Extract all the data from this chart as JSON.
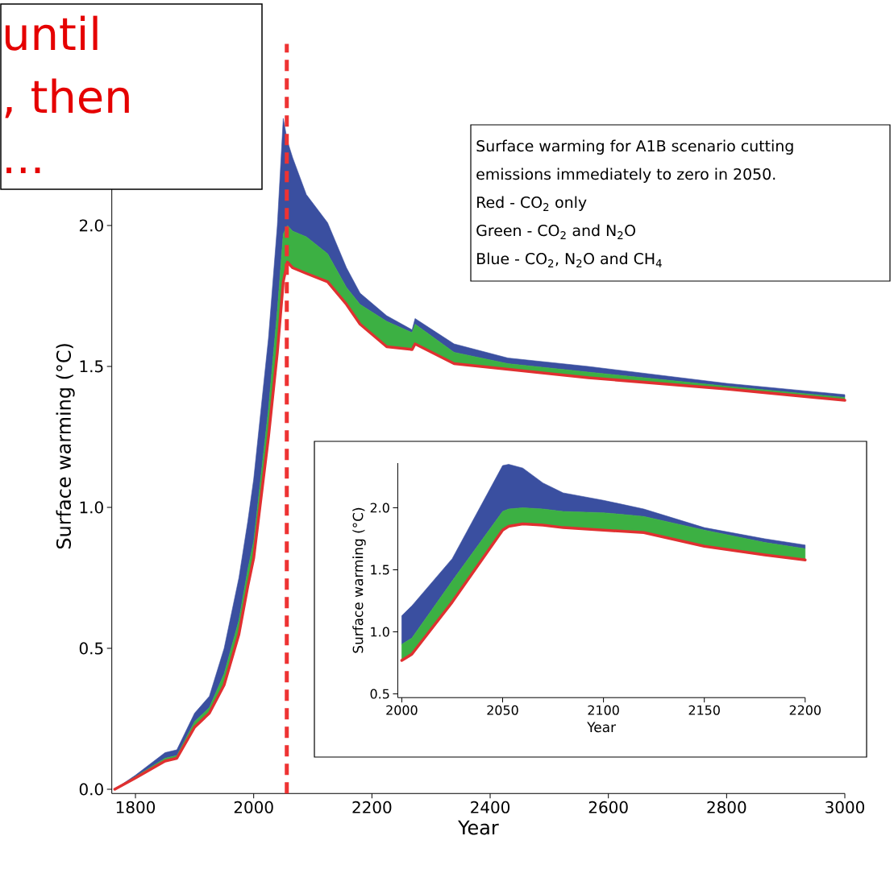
{
  "chart_data": [
    {
      "type": "area",
      "xlabel": "Year",
      "ylabel": "Surface warming (°C)",
      "x": [
        1765,
        1800,
        1850,
        1870,
        1900,
        1925,
        1950,
        1975,
        1990,
        2000,
        2025,
        2040,
        2050,
        2057,
        2066,
        2089,
        2125,
        2157,
        2180,
        2225,
        2268,
        2273,
        2339,
        2430,
        2566,
        2800,
        3000
      ],
      "series": [
        {
          "color": "#3a4fa0",
          "values": [
            0,
            0.05,
            0.13,
            0.14,
            0.27,
            0.33,
            0.5,
            0.75,
            0.95,
            1.1,
            1.6,
            2.0,
            2.38,
            2.3,
            2.24,
            2.11,
            2.01,
            1.85,
            1.76,
            1.68,
            1.63,
            1.67,
            1.58,
            1.53,
            1.5,
            1.44,
            1.4
          ]
        },
        {
          "color": "#3cb043",
          "values": [
            0,
            0.045,
            0.11,
            0.12,
            0.24,
            0.29,
            0.41,
            0.6,
            0.78,
            0.88,
            1.35,
            1.7,
            1.97,
            2.0,
            1.98,
            1.96,
            1.9,
            1.78,
            1.72,
            1.66,
            1.62,
            1.65,
            1.55,
            1.51,
            1.48,
            1.43,
            1.39
          ]
        },
        {
          "type": "line",
          "color": "#e03030",
          "values": [
            0,
            0.04,
            0.1,
            0.11,
            0.22,
            0.27,
            0.37,
            0.55,
            0.72,
            0.82,
            1.25,
            1.55,
            1.8,
            1.87,
            1.85,
            1.83,
            1.8,
            1.72,
            1.65,
            1.57,
            1.56,
            1.58,
            1.51,
            1.49,
            1.46,
            1.42,
            1.38
          ]
        }
      ],
      "xlim": [
        1760,
        3000
      ],
      "ylim": [
        -0.015,
        2.45
      ],
      "xticks": [
        1800,
        2000,
        2200,
        2400,
        2600,
        2800,
        3000
      ],
      "yticks": [
        {
          "value": 0,
          "label": "0.0"
        },
        {
          "value": 0.5,
          "label": "0.5"
        },
        {
          "value": 1,
          "label": "1.0"
        },
        {
          "value": 1.5,
          "label": "1.5"
        },
        {
          "value": 2,
          "label": "2.0"
        }
      ],
      "ref_lines": [
        {
          "axis": "x",
          "value": 2056,
          "color": "#ee3333",
          "line_style": "dashed"
        }
      ],
      "annotations": [
        "until",
        ", then",
        "...",
        "Surface warming for A1B scenario cutting",
        "emissions immediately to zero in 2050.",
        "Red -  CO$_{2}$ only",
        "Green - CO$_{2}$ and N$_{2}$O",
        "Blue - CO$_{2}$, N$_{2}$O and CH$_{4}$"
      ]
    },
    {
      "type": "area",
      "xlabel": "Year",
      "ylabel": "Surface warming (°C)",
      "x": [
        2000,
        2005,
        2025,
        2050,
        2053,
        2060,
        2070,
        2080,
        2100,
        2120,
        2150,
        2180,
        2200
      ],
      "series": [
        {
          "color": "#3a4fa0",
          "values": [
            1.13,
            1.21,
            1.59,
            2.34,
            2.35,
            2.32,
            2.2,
            2.12,
            2.06,
            1.99,
            1.84,
            1.75,
            1.7
          ]
        },
        {
          "color": "#3cb043",
          "values": [
            0.9,
            0.95,
            1.41,
            1.97,
            1.99,
            2.0,
            1.99,
            1.97,
            1.96,
            1.93,
            1.82,
            1.72,
            1.67
          ]
        },
        {
          "type": "line",
          "color": "#e03030",
          "values": [
            0.77,
            0.82,
            1.24,
            1.82,
            1.85,
            1.87,
            1.86,
            1.84,
            1.82,
            1.8,
            1.69,
            1.62,
            1.58
          ]
        }
      ],
      "xlim": [
        1998,
        2200
      ],
      "ylim": [
        0.47,
        2.36
      ],
      "xticks": [
        2000,
        2050,
        2100,
        2150,
        2200
      ],
      "yticks": [
        {
          "value": 0.5,
          "label": "0.5"
        },
        {
          "value": 1,
          "label": "1.0"
        },
        {
          "value": 1.5,
          "label": "1.5"
        },
        {
          "value": 2,
          "label": "2.0"
        }
      ]
    }
  ]
}
